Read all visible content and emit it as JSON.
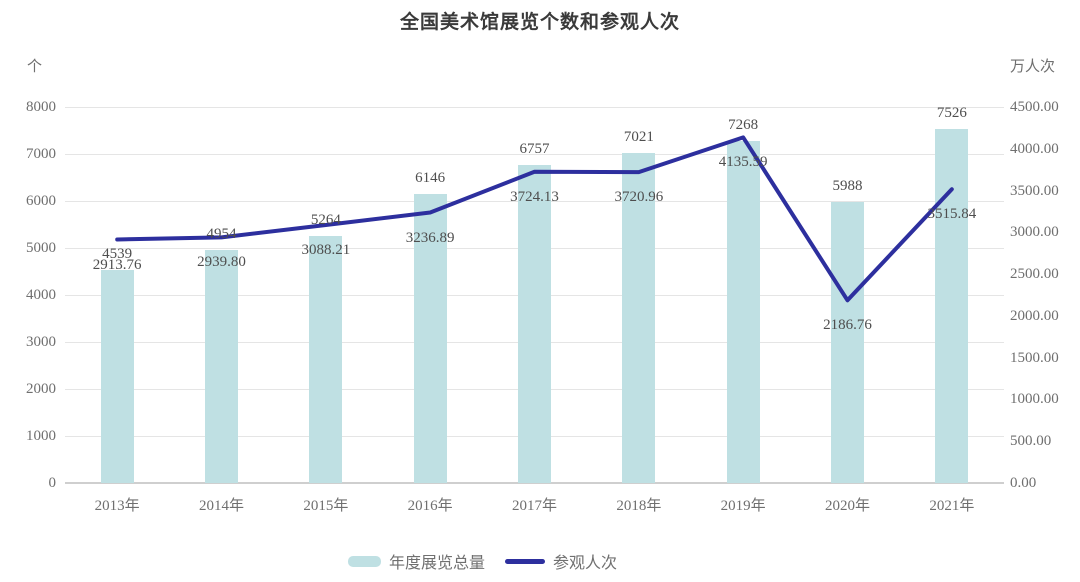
{
  "title": "全国美术馆展览个数和参观人次",
  "chart_data": {
    "type": "combo-bar-line",
    "title": "全国美术馆展览个数和参观人次",
    "categories": [
      "2013年",
      "2014年",
      "2015年",
      "2016年",
      "2017年",
      "2018年",
      "2019年",
      "2020年",
      "2021年"
    ],
    "series": [
      {
        "name": "年度展览总量",
        "type": "bar",
        "axis": "left",
        "values": [
          4539,
          4954,
          5264,
          6146,
          6757,
          7021,
          7268,
          5988,
          7526
        ]
      },
      {
        "name": "参观人次",
        "type": "line",
        "axis": "right",
        "values": [
          2913.76,
          2939.8,
          3088.21,
          3236.89,
          3724.13,
          3720.96,
          4135.59,
          2186.76,
          3515.84
        ]
      }
    ],
    "ylabel_left": "个",
    "ylabel_right": "万人次",
    "ylim_left": [
      0,
      8000
    ],
    "ytick_step_left": 1000,
    "ylim_right": [
      0,
      4500
    ],
    "ytick_step_right": 500,
    "right_tick_decimals": 2,
    "line_label_decimals": 2,
    "grid": "horizontal",
    "legend_position": "bottom",
    "colors": {
      "bar": "#bfe0e3",
      "line": "#2d2f9e",
      "grid": "#e5e5e5",
      "axis_zero_line": "#cfcfcf",
      "tick_text": "#6f6f6f",
      "data_label_text": "#4e4e4e",
      "title_text": "#3a3a3a"
    }
  }
}
